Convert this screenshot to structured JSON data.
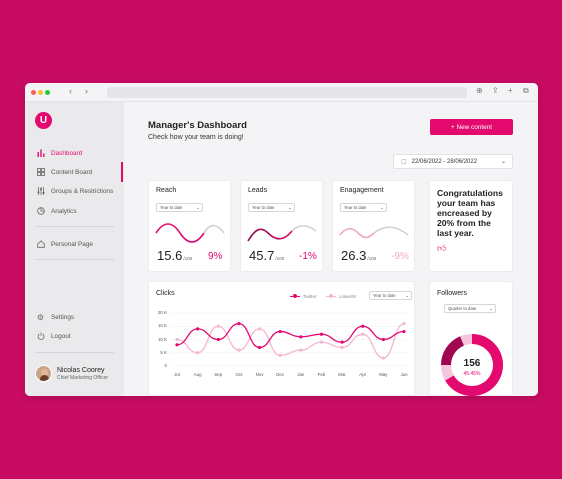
{
  "colors": {
    "background": "#c80c63",
    "accent": "#e3096f",
    "accent_light": "#f4b6d2"
  },
  "browser": {
    "icons": [
      "chevron-left-icon",
      "chevron-right-icon",
      "download-icon",
      "share-icon",
      "plus-icon",
      "tabs-icon"
    ]
  },
  "sidebar": {
    "items": [
      {
        "label": "Dashboard",
        "icon": "bar-chart-icon",
        "active": true
      },
      {
        "label": "Content Board",
        "icon": "grid-icon"
      },
      {
        "label": "Groups & Restrictions",
        "icon": "sliders-icon"
      },
      {
        "label": "Analytics",
        "icon": "pie-icon"
      },
      {
        "label": "Personal Page",
        "icon": "home-icon"
      },
      {
        "label": "Settings",
        "icon": "gear-icon"
      },
      {
        "label": "Logout",
        "icon": "power-icon"
      }
    ],
    "user": {
      "name": "Nicolas Coorey",
      "role": "Chief Marketing Officer"
    }
  },
  "header": {
    "title": "Manager's Dashboard",
    "subtitle": "Check how your team is doing!",
    "new_button_label": "+ New content",
    "date_range": "22/06/2022 - 28/06/2022"
  },
  "stats": [
    {
      "title": "Reach",
      "period": "Year to date",
      "value": "15.6",
      "unit": "/100",
      "change": "9%",
      "change_color": "#e3096f"
    },
    {
      "title": "Leads",
      "period": "Year to date",
      "value": "45.7",
      "unit": "/100",
      "change": "-1%",
      "change_color": "#e3096f"
    },
    {
      "title": "Enagagement",
      "period": "Year to date",
      "value": "26.3",
      "unit": "/100",
      "change": "-9%",
      "change_color": "#f4a6c8"
    }
  ],
  "congrats": {
    "text": "Congratulations your team has encreased by 20% from the last year."
  },
  "clicks": {
    "title": "Clicks",
    "period": "Year to date",
    "legend": [
      "Twitter",
      "LinkedIn"
    ]
  },
  "followers": {
    "title": "Followers",
    "period": "Quarter to date",
    "value": "156",
    "change": "45.45%"
  },
  "chart_data": {
    "type": "line",
    "x": [
      "Jul",
      "Aug",
      "Sep",
      "Oct",
      "Nov",
      "Dec",
      "Jan",
      "Feb",
      "Mar",
      "Apr",
      "May",
      "Jun"
    ],
    "series": [
      {
        "name": "Twitter",
        "values": [
          8,
          14,
          10,
          16,
          7,
          13,
          11,
          12,
          9,
          15,
          10,
          13
        ]
      },
      {
        "name": "LinkedIn",
        "values": [
          10,
          5,
          15,
          6,
          14,
          4,
          6,
          9,
          7,
          12,
          3,
          16
        ]
      }
    ],
    "yticks": [
      "20 K",
      "15 K",
      "10 K",
      "5 K",
      "0"
    ],
    "ylim": [
      0,
      20
    ]
  }
}
